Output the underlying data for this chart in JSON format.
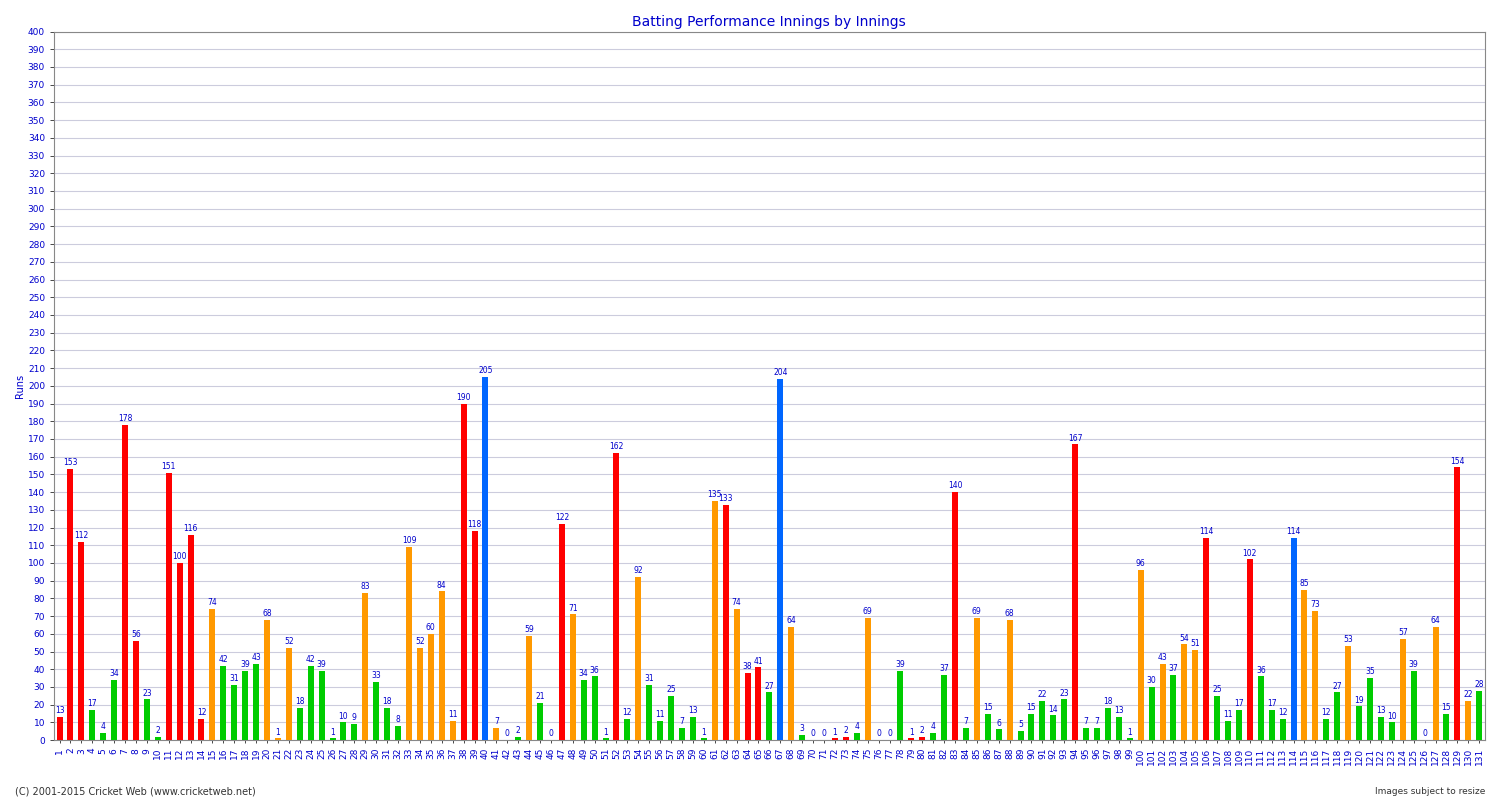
{
  "title": "Batting Performance Innings by Innings",
  "ylabel": "Runs",
  "ylim": [
    0,
    400
  ],
  "yticks": [
    0,
    10,
    20,
    30,
    40,
    50,
    60,
    70,
    80,
    90,
    100,
    110,
    120,
    130,
    140,
    150,
    160,
    170,
    180,
    190,
    200,
    210,
    220,
    230,
    240,
    250,
    260,
    270,
    280,
    290,
    300,
    310,
    320,
    330,
    340,
    350,
    360,
    370,
    380,
    390,
    400
  ],
  "background_color": "#ffffff",
  "plot_bg_color": "#ffffff",
  "grid_color": "#ccccdd",
  "text_color": "#0000cc",
  "innings": [
    {
      "inn": 1,
      "val": 13,
      "color": "#ff0000"
    },
    {
      "inn": 2,
      "val": 153,
      "color": "#ff0000"
    },
    {
      "inn": 3,
      "val": 112,
      "color": "#ff0000"
    },
    {
      "inn": 4,
      "val": 17,
      "color": "#00cc00"
    },
    {
      "inn": 5,
      "val": 4,
      "color": "#00cc00"
    },
    {
      "inn": 6,
      "val": 34,
      "color": "#00cc00"
    },
    {
      "inn": 7,
      "val": 178,
      "color": "#ff0000"
    },
    {
      "inn": 8,
      "val": 56,
      "color": "#ff0000"
    },
    {
      "inn": 9,
      "val": 23,
      "color": "#00cc00"
    },
    {
      "inn": 10,
      "val": 2,
      "color": "#00cc00"
    },
    {
      "inn": 11,
      "val": 151,
      "color": "#ff0000"
    },
    {
      "inn": 12,
      "val": 100,
      "color": "#ff0000"
    },
    {
      "inn": 13,
      "val": 116,
      "color": "#ff0000"
    },
    {
      "inn": 14,
      "val": 12,
      "color": "#ff0000"
    },
    {
      "inn": 15,
      "val": 74,
      "color": "#ff9900"
    },
    {
      "inn": 16,
      "val": 42,
      "color": "#00cc00"
    },
    {
      "inn": 17,
      "val": 31,
      "color": "#00cc00"
    },
    {
      "inn": 18,
      "val": 39,
      "color": "#00cc00"
    },
    {
      "inn": 19,
      "val": 43,
      "color": "#00cc00"
    },
    {
      "inn": 20,
      "val": 68,
      "color": "#ff9900"
    },
    {
      "inn": 21,
      "val": 1,
      "color": "#ff9900"
    },
    {
      "inn": 22,
      "val": 52,
      "color": "#ff9900"
    },
    {
      "inn": 23,
      "val": 18,
      "color": "#00cc00"
    },
    {
      "inn": 24,
      "val": 42,
      "color": "#00cc00"
    },
    {
      "inn": 25,
      "val": 39,
      "color": "#00cc00"
    },
    {
      "inn": 26,
      "val": 1,
      "color": "#00cc00"
    },
    {
      "inn": 27,
      "val": 10,
      "color": "#00cc00"
    },
    {
      "inn": 28,
      "val": 9,
      "color": "#00cc00"
    },
    {
      "inn": 29,
      "val": 83,
      "color": "#ff9900"
    },
    {
      "inn": 30,
      "val": 33,
      "color": "#00cc00"
    },
    {
      "inn": 31,
      "val": 18,
      "color": "#00cc00"
    },
    {
      "inn": 32,
      "val": 8,
      "color": "#00cc00"
    },
    {
      "inn": 33,
      "val": 109,
      "color": "#ff9900"
    },
    {
      "inn": 34,
      "val": 52,
      "color": "#ff9900"
    },
    {
      "inn": 35,
      "val": 60,
      "color": "#ff9900"
    },
    {
      "inn": 36,
      "val": 84,
      "color": "#ff9900"
    },
    {
      "inn": 37,
      "val": 11,
      "color": "#ff9900"
    },
    {
      "inn": 38,
      "val": 190,
      "color": "#ff0000"
    },
    {
      "inn": 39,
      "val": 118,
      "color": "#ff0000"
    },
    {
      "inn": 40,
      "val": 205,
      "color": "#0066ff"
    },
    {
      "inn": 41,
      "val": 7,
      "color": "#ff9900"
    },
    {
      "inn": 42,
      "val": 0,
      "color": "#ff9900"
    },
    {
      "inn": 43,
      "val": 2,
      "color": "#00cc00"
    },
    {
      "inn": 44,
      "val": 59,
      "color": "#ff9900"
    },
    {
      "inn": 45,
      "val": 21,
      "color": "#00cc00"
    },
    {
      "inn": 46,
      "val": 0,
      "color": "#ff9900"
    },
    {
      "inn": 47,
      "val": 122,
      "color": "#ff0000"
    },
    {
      "inn": 48,
      "val": 71,
      "color": "#ff9900"
    },
    {
      "inn": 49,
      "val": 34,
      "color": "#00cc00"
    },
    {
      "inn": 50,
      "val": 36,
      "color": "#00cc00"
    },
    {
      "inn": 51,
      "val": 1,
      "color": "#00cc00"
    },
    {
      "inn": 52,
      "val": 162,
      "color": "#ff0000"
    },
    {
      "inn": 53,
      "val": 12,
      "color": "#00cc00"
    },
    {
      "inn": 54,
      "val": 92,
      "color": "#ff9900"
    },
    {
      "inn": 55,
      "val": 31,
      "color": "#00cc00"
    },
    {
      "inn": 56,
      "val": 11,
      "color": "#00cc00"
    },
    {
      "inn": 57,
      "val": 25,
      "color": "#00cc00"
    },
    {
      "inn": 58,
      "val": 7,
      "color": "#00cc00"
    },
    {
      "inn": 59,
      "val": 13,
      "color": "#00cc00"
    },
    {
      "inn": 60,
      "val": 1,
      "color": "#00cc00"
    },
    {
      "inn": 61,
      "val": 135,
      "color": "#ff9900"
    },
    {
      "inn": 62,
      "val": 133,
      "color": "#ff0000"
    },
    {
      "inn": 63,
      "val": 74,
      "color": "#ff9900"
    },
    {
      "inn": 64,
      "val": 38,
      "color": "#ff0000"
    },
    {
      "inn": 65,
      "val": 41,
      "color": "#ff0000"
    },
    {
      "inn": 66,
      "val": 27,
      "color": "#00cc00"
    },
    {
      "inn": 67,
      "val": 204,
      "color": "#0066ff"
    },
    {
      "inn": 68,
      "val": 64,
      "color": "#ff9900"
    },
    {
      "inn": 69,
      "val": 3,
      "color": "#00cc00"
    },
    {
      "inn": 70,
      "val": 0,
      "color": "#ff9900"
    },
    {
      "inn": 71,
      "val": 0,
      "color": "#ff9900"
    },
    {
      "inn": 72,
      "val": 1,
      "color": "#ff0000"
    },
    {
      "inn": 73,
      "val": 2,
      "color": "#ff0000"
    },
    {
      "inn": 74,
      "val": 4,
      "color": "#00cc00"
    },
    {
      "inn": 75,
      "val": 69,
      "color": "#ff9900"
    },
    {
      "inn": 76,
      "val": 0,
      "color": "#ff0000"
    },
    {
      "inn": 77,
      "val": 0,
      "color": "#ff0000"
    },
    {
      "inn": 78,
      "val": 39,
      "color": "#00cc00"
    },
    {
      "inn": 79,
      "val": 1,
      "color": "#ff0000"
    },
    {
      "inn": 80,
      "val": 2,
      "color": "#ff0000"
    },
    {
      "inn": 81,
      "val": 4,
      "color": "#00cc00"
    },
    {
      "inn": 82,
      "val": 37,
      "color": "#00cc00"
    },
    {
      "inn": 83,
      "val": 140,
      "color": "#ff0000"
    },
    {
      "inn": 84,
      "val": 7,
      "color": "#00cc00"
    },
    {
      "inn": 85,
      "val": 69,
      "color": "#ff9900"
    },
    {
      "inn": 86,
      "val": 15,
      "color": "#00cc00"
    },
    {
      "inn": 87,
      "val": 6,
      "color": "#00cc00"
    },
    {
      "inn": 88,
      "val": 68,
      "color": "#ff9900"
    },
    {
      "inn": 89,
      "val": 5,
      "color": "#00cc00"
    },
    {
      "inn": 90,
      "val": 15,
      "color": "#00cc00"
    },
    {
      "inn": 91,
      "val": 22,
      "color": "#00cc00"
    },
    {
      "inn": 92,
      "val": 14,
      "color": "#00cc00"
    },
    {
      "inn": 93,
      "val": 23,
      "color": "#00cc00"
    },
    {
      "inn": 94,
      "val": 167,
      "color": "#ff0000"
    },
    {
      "inn": 95,
      "val": 7,
      "color": "#00cc00"
    },
    {
      "inn": 96,
      "val": 7,
      "color": "#00cc00"
    },
    {
      "inn": 97,
      "val": 18,
      "color": "#00cc00"
    },
    {
      "inn": 98,
      "val": 13,
      "color": "#00cc00"
    },
    {
      "inn": 99,
      "val": 1,
      "color": "#00cc00"
    },
    {
      "inn": 100,
      "val": 96,
      "color": "#ff9900"
    },
    {
      "inn": 101,
      "val": 30,
      "color": "#00cc00"
    },
    {
      "inn": 102,
      "val": 43,
      "color": "#ff9900"
    },
    {
      "inn": 103,
      "val": 37,
      "color": "#00cc00"
    },
    {
      "inn": 104,
      "val": 54,
      "color": "#ff9900"
    },
    {
      "inn": 105,
      "val": 51,
      "color": "#ff9900"
    },
    {
      "inn": 106,
      "val": 114,
      "color": "#ff0000"
    },
    {
      "inn": 107,
      "val": 25,
      "color": "#00cc00"
    },
    {
      "inn": 108,
      "val": 11,
      "color": "#00cc00"
    },
    {
      "inn": 109,
      "val": 17,
      "color": "#00cc00"
    },
    {
      "inn": 110,
      "val": 102,
      "color": "#ff0000"
    },
    {
      "inn": 111,
      "val": 36,
      "color": "#00cc00"
    },
    {
      "inn": 112,
      "val": 17,
      "color": "#00cc00"
    },
    {
      "inn": 113,
      "val": 12,
      "color": "#00cc00"
    },
    {
      "inn": 114,
      "val": 114,
      "color": "#0066ff"
    },
    {
      "inn": 115,
      "val": 85,
      "color": "#ff9900"
    },
    {
      "inn": 116,
      "val": 73,
      "color": "#ff9900"
    },
    {
      "inn": 117,
      "val": 12,
      "color": "#00cc00"
    },
    {
      "inn": 118,
      "val": 27,
      "color": "#00cc00"
    },
    {
      "inn": 119,
      "val": 53,
      "color": "#ff9900"
    },
    {
      "inn": 120,
      "val": 19,
      "color": "#00cc00"
    },
    {
      "inn": 121,
      "val": 35,
      "color": "#00cc00"
    },
    {
      "inn": 122,
      "val": 13,
      "color": "#00cc00"
    },
    {
      "inn": 123,
      "val": 10,
      "color": "#00cc00"
    },
    {
      "inn": 124,
      "val": 57,
      "color": "#ff9900"
    },
    {
      "inn": 125,
      "val": 39,
      "color": "#00cc00"
    },
    {
      "inn": 126,
      "val": 0,
      "color": "#ff0000"
    },
    {
      "inn": 127,
      "val": 64,
      "color": "#ff9900"
    },
    {
      "inn": 128,
      "val": 15,
      "color": "#00cc00"
    },
    {
      "inn": 129,
      "val": 154,
      "color": "#ff0000"
    },
    {
      "inn": 130,
      "val": 22,
      "color": "#ff9900"
    },
    {
      "inn": 131,
      "val": 28,
      "color": "#00cc00"
    }
  ],
  "bar_width": 0.55,
  "label_fontsize": 5.5,
  "tick_label_fontsize": 6.5,
  "ylabel_fontsize": 7,
  "title_fontsize": 10,
  "footer": "(C) 2001-2015 Cricket Web (www.cricketweb.net)",
  "footer_right": "Images subject to resize"
}
